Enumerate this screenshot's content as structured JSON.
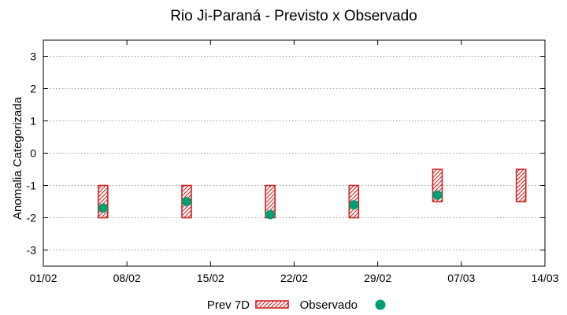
{
  "chart_data": {
    "type": "range-bar-scatter",
    "title": "Rio Ji-Paraná - Previsto x Observado",
    "xlabel": "",
    "ylabel": "Anomalia Categorizada",
    "x_ticks": [
      {
        "date": "2024-02-01",
        "label": "01/02"
      },
      {
        "date": "2024-02-08",
        "label": "08/02"
      },
      {
        "date": "2024-02-15",
        "label": "15/02"
      },
      {
        "date": "2024-02-22",
        "label": "22/02"
      },
      {
        "date": "2024-02-29",
        "label": "29/02"
      },
      {
        "date": "2024-03-07",
        "label": "07/03"
      },
      {
        "date": "2024-03-14",
        "label": "14/03"
      }
    ],
    "xlim": [
      "2024-02-01",
      "2024-03-14"
    ],
    "ylim": [
      -3.5,
      3.5
    ],
    "y_ticks": [
      -3,
      -2,
      -1,
      0,
      1,
      2,
      3
    ],
    "grid": true,
    "legend_position": "bottom",
    "series": [
      {
        "name": "Prev 7D",
        "kind": "range",
        "color": "#d42020",
        "points": [
          {
            "x": "2024-02-06",
            "low": -2,
            "high": -1
          },
          {
            "x": "2024-02-13",
            "low": -2,
            "high": -1
          },
          {
            "x": "2024-02-20",
            "low": -2,
            "high": -1
          },
          {
            "x": "2024-02-27",
            "low": -2,
            "high": -1
          },
          {
            "x": "2024-03-05",
            "low": -1.5,
            "high": -0.5
          },
          {
            "x": "2024-03-12",
            "low": -1.5,
            "high": -0.5
          }
        ]
      },
      {
        "name": "Observado",
        "kind": "scatter",
        "color": "#009e73",
        "points": [
          {
            "x": "2024-02-06",
            "y": -1.7
          },
          {
            "x": "2024-02-13",
            "y": -1.5
          },
          {
            "x": "2024-02-20",
            "y": -1.9
          },
          {
            "x": "2024-02-27",
            "y": -1.6
          },
          {
            "x": "2024-03-05",
            "y": -1.3
          }
        ]
      }
    ]
  }
}
